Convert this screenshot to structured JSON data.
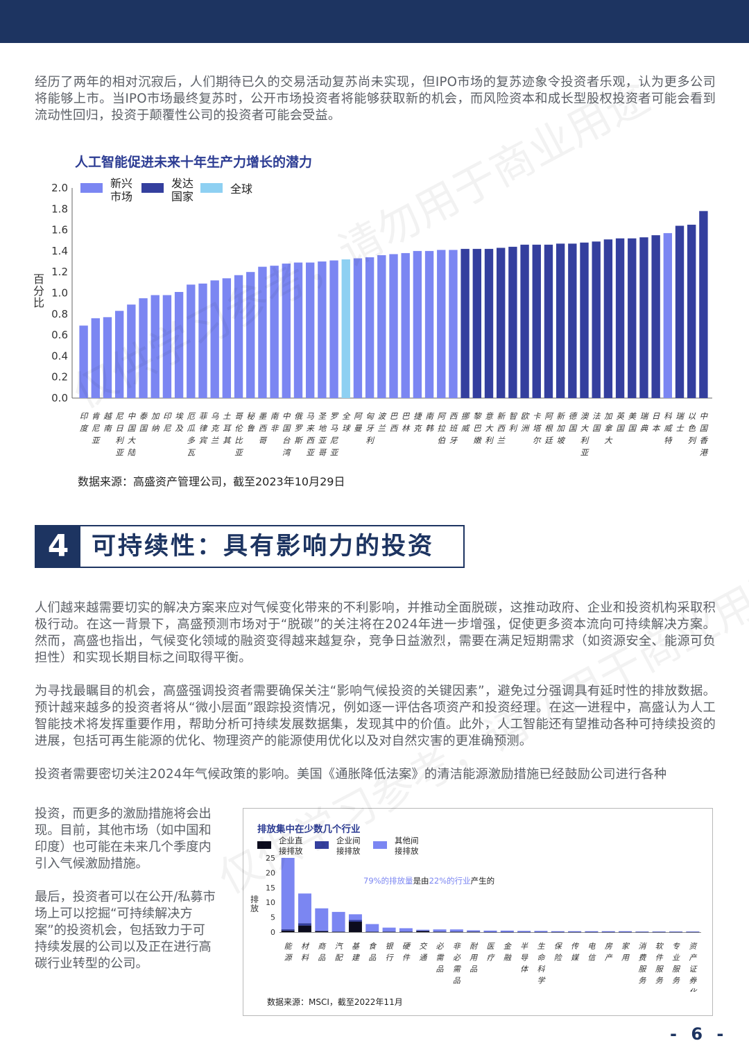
{
  "intro_paragraph": "经历了两年的相对沉寂后，人们期待已久的交易活动复苏尚未实现，但IPO市场的复苏迹象令投资者乐观，认为更多公司将能够上市。当IPO市场最终复苏时，公开市场投资者将能够获取新的机会，而风险资本和成长型股权投资者可能会看到流动性回归，投资于颠覆性公司的投资者可能会受益。",
  "watermark": "仅供学习参考，请勿用于商业用途",
  "chart1": {
    "title": "人工智能促进未来十年生产力增长的潜力",
    "source": "数据来源：高盛资产管理公司，截至2023年10月29日",
    "ylabel": "百分比",
    "legend": [
      {
        "label": "新兴\n市场",
        "color": "#7b86f2"
      },
      {
        "label": "发达\n国家",
        "color": "#343f9e"
      },
      {
        "label": "全球",
        "color": "#8ed0f2"
      }
    ],
    "colors": {
      "em": "#7b86f2",
      "dm": "#343f9e",
      "global": "#8ed0f2"
    }
  },
  "chart_data": [
    {
      "type": "bar",
      "title": "人工智能促进未来十年生产力增长的潜力",
      "ylabel": "百分比",
      "ylim": [
        0,
        2.0
      ],
      "yticks": [
        "0.0",
        "0.2",
        "0.4",
        "0.6",
        "0.8",
        "1.0",
        "1.2",
        "1.4",
        "1.6",
        "1.8",
        "2.0"
      ],
      "legend_position": "top-left",
      "grid": false,
      "categories": [
        "印度",
        "肯尼亚",
        "越南",
        "尼日利亚",
        "中国大陆",
        "泰国",
        "加纳",
        "印尼",
        "埃及",
        "厄瓜多瓦",
        "菲律宾",
        "乌克兰",
        "土耳其",
        "哥伦比亚",
        "秘鲁",
        "墨西哥",
        "南非",
        "中国台湾",
        "俄罗斯",
        "马来西亚",
        "圣地亚哥",
        "罗马尼亚",
        "全球",
        "阿曼",
        "匈牙利",
        "波兰",
        "巴西",
        "巴林",
        "捷克",
        "南韩",
        "阿拉伯",
        "西班牙",
        "挪威",
        "黎巴嫩",
        "意大利",
        "新西兰",
        "智利",
        "欧洲",
        "卡塔尔",
        "阿根廷",
        "新加坡",
        "德国",
        "澳大利亚",
        "法国",
        "加拿大",
        "英国",
        "美国",
        "瑞典",
        "日本",
        "科威特",
        "瑞士",
        "以色列",
        "中国香港"
      ],
      "groups": [
        "em",
        "em",
        "em",
        "em",
        "em",
        "em",
        "em",
        "em",
        "em",
        "em",
        "em",
        "em",
        "em",
        "em",
        "em",
        "em",
        "em",
        "em",
        "em",
        "em",
        "em",
        "em",
        "global",
        "em",
        "em",
        "em",
        "em",
        "em",
        "em",
        "em",
        "em",
        "em",
        "dm",
        "dm",
        "dm",
        "dm",
        "dm",
        "dm",
        "dm",
        "dm",
        "dm",
        "dm",
        "dm",
        "dm",
        "dm",
        "dm",
        "dm",
        "dm",
        "dm",
        "em",
        "dm",
        "dm",
        "dm"
      ],
      "values": [
        0.69,
        0.76,
        0.77,
        0.83,
        0.89,
        0.95,
        0.98,
        0.98,
        1.01,
        1.08,
        1.09,
        1.12,
        1.14,
        1.17,
        1.2,
        1.25,
        1.26,
        1.28,
        1.29,
        1.29,
        1.3,
        1.31,
        1.32,
        1.33,
        1.34,
        1.36,
        1.37,
        1.38,
        1.4,
        1.4,
        1.41,
        1.41,
        1.42,
        1.42,
        1.42,
        1.43,
        1.44,
        1.46,
        1.46,
        1.46,
        1.47,
        1.47,
        1.48,
        1.49,
        1.51,
        1.52,
        1.52,
        1.53,
        1.55,
        1.57,
        1.64,
        1.65,
        1.78
      ]
    },
    {
      "type": "bar",
      "title": "排放集中在少数几个行业",
      "ylabel": "排放",
      "ylim": [
        0,
        25
      ],
      "yticks": [
        "0",
        "5",
        "10",
        "15",
        "20",
        "25"
      ],
      "stacked": true,
      "legend_position": "top-left",
      "annotation": "79%的排放量是由22%的行业产生的",
      "categories": [
        "能源",
        "材料",
        "商品",
        "汽配",
        "基建",
        "食品",
        "银行",
        "硬件",
        "交通",
        "必需品",
        "非必需品",
        "耐用品",
        "医疗",
        "金融",
        "半导体",
        "生命科学",
        "保险",
        "传媒",
        "电信",
        "房产",
        "家用",
        "消费服务",
        "软件服务",
        "专业服务",
        "资产证券化"
      ],
      "series": [
        {
          "name": "企业直接排放",
          "color": "#0c0c1e",
          "values": [
            0.5,
            2.2,
            0.3,
            0.1,
            3.5,
            0.1,
            0.1,
            0.1,
            0.4,
            0.1,
            0.1,
            0.1,
            0.05,
            0.05,
            0.05,
            0.05,
            0.05,
            0.05,
            0.05,
            0.05,
            0.05,
            0.05,
            0.05,
            0.05,
            0.05
          ]
        },
        {
          "name": "企业间接排放",
          "color": "#343f9e",
          "values": [
            0.5,
            0.8,
            0.2,
            0.1,
            0.6,
            0.1,
            0.1,
            0.1,
            0.1,
            0.1,
            0.1,
            0.1,
            0.05,
            0.05,
            0.05,
            0.05,
            0.05,
            0.05,
            0.05,
            0.05,
            0.05,
            0.05,
            0.05,
            0.05,
            0.05
          ]
        },
        {
          "name": "其他间接排放",
          "color": "#7b86f2",
          "values": [
            24.0,
            10.0,
            7.5,
            6.6,
            1.9,
            2.5,
            1.3,
            1.1,
            0.3,
            0.7,
            0.7,
            0.4,
            0.4,
            0.4,
            0.3,
            0.3,
            0.2,
            0.2,
            0.2,
            0.2,
            0.2,
            0.1,
            0.1,
            0.1,
            0.1
          ]
        }
      ]
    }
  ],
  "section": {
    "number": "4",
    "title": "可持续性：具有影响力的投资"
  },
  "paragraphs": [
    "人们越来越需要切实的解决方案来应对气候变化带来的不利影响，并推动全面脱碳，这推动政府、企业和投资机构采取积极行动。在这一背景下，高盛预测市场对于“脱碳”的关注将在2024年进一步增强，促使更多资本流向可持续解决方案。然而，高盛也指出，气候变化领域的融资变得越来越复杂，竞争日益激烈，需要在满足短期需求（如资源安全、能源可负担性）和实现长期目标之间取得平衡。",
    "为寻找最瞩目的机会，高盛强调投资者需要确保关注“影响气候投资的关键因素”，避免过分强调具有延时性的排放数据。预计越来越多的投资者将从“微小层面”跟踪投资情况，例如逐一评估各项资产和投资经理。在这一进程中，高盛认为人工智能技术将发挥重要作用，帮助分析可持续发展数据集，发现其中的价值。此外，人工智能还有望推动各种可持续投资的进展，包括可再生能源的优化、物理资产的能源使用优化以及对自然灾害的更准确预测。",
    "投资者需要密切关注2024年气候政策的影响。美国《通胀降低法案》的清洁能源激励措施已经鼓励公司进行各种"
  ],
  "side_paragraphs": [
    "投资，而更多的激励措施将会出现。目前，其他市场（如中国和印度）也可能在未来几个季度内引入气候激励措施。",
    "最后，投资者可以在公开/私募市场上可以挖掘“可持续解决方案”的投资机会，包括致力于可持续发展的公司以及正在进行高碳行业转型的公司。"
  ],
  "chart2": {
    "title": "排放集中在少数几个行业",
    "ylabel": "排放",
    "legend": [
      "企业直\n接排放",
      "企业间\n接排放",
      "其他间\n接排放"
    ],
    "annotation_parts": [
      "79%的排放量",
      "是由",
      "22%的行业",
      "产生的"
    ],
    "source": "数据来源：MSCI，截至2022年11月"
  },
  "page_number": "- 6 -"
}
